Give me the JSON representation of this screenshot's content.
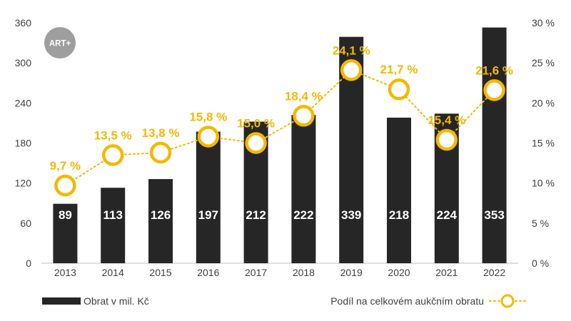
{
  "logo": {
    "text": "ART+"
  },
  "chart_data": {
    "type": "bar+line",
    "categories": [
      "2013",
      "2014",
      "2015",
      "2016",
      "2017",
      "2018",
      "2019",
      "2020",
      "2021",
      "2022"
    ],
    "series": [
      {
        "name": "Obrat v mil. Kč",
        "kind": "bar",
        "axis": "left",
        "values": [
          89,
          113,
          126,
          197,
          212,
          222,
          339,
          218,
          224,
          353
        ],
        "labels": [
          "89",
          "113",
          "126",
          "197",
          "212",
          "222",
          "339",
          "218",
          "224",
          "353"
        ]
      },
      {
        "name": "Podíl na celkovém aukčním obratu",
        "kind": "line",
        "axis": "right",
        "values": [
          9.7,
          13.5,
          13.8,
          15.8,
          15.0,
          18.4,
          24.1,
          21.7,
          15.4,
          21.6
        ],
        "labels": [
          "9,7 %",
          "13,5 %",
          "13,8 %",
          "15,8 %",
          "15,0 %",
          "18,4 %",
          "24,1 %",
          "21,7 %",
          "15,4 %",
          "21,6 %"
        ]
      }
    ],
    "y_left": {
      "min": 0,
      "max": 360,
      "ticks": [
        0,
        60,
        120,
        180,
        240,
        300,
        360
      ],
      "tick_labels": [
        "0",
        "60",
        "120",
        "180",
        "240",
        "300",
        "360"
      ]
    },
    "y_right": {
      "min": 0,
      "max": 30,
      "ticks": [
        0,
        5,
        10,
        15,
        20,
        25,
        30
      ],
      "tick_labels": [
        "0 %",
        "5 %",
        "10 %",
        "15 %",
        "20 %",
        "25 %",
        "30 %"
      ]
    },
    "legend": {
      "bar_label": "Obrat v mil. Kč",
      "line_label": "Podíl na celkovém aukčním obratu",
      "placement": "bottom"
    },
    "grid": false
  },
  "colors": {
    "bar": "#262626",
    "line": "#f5b800",
    "axis_text": "#404040",
    "bar_label": "#ffffff",
    "logo_bg": "#9e9e9e",
    "axis_line": "#bfbfbf"
  }
}
